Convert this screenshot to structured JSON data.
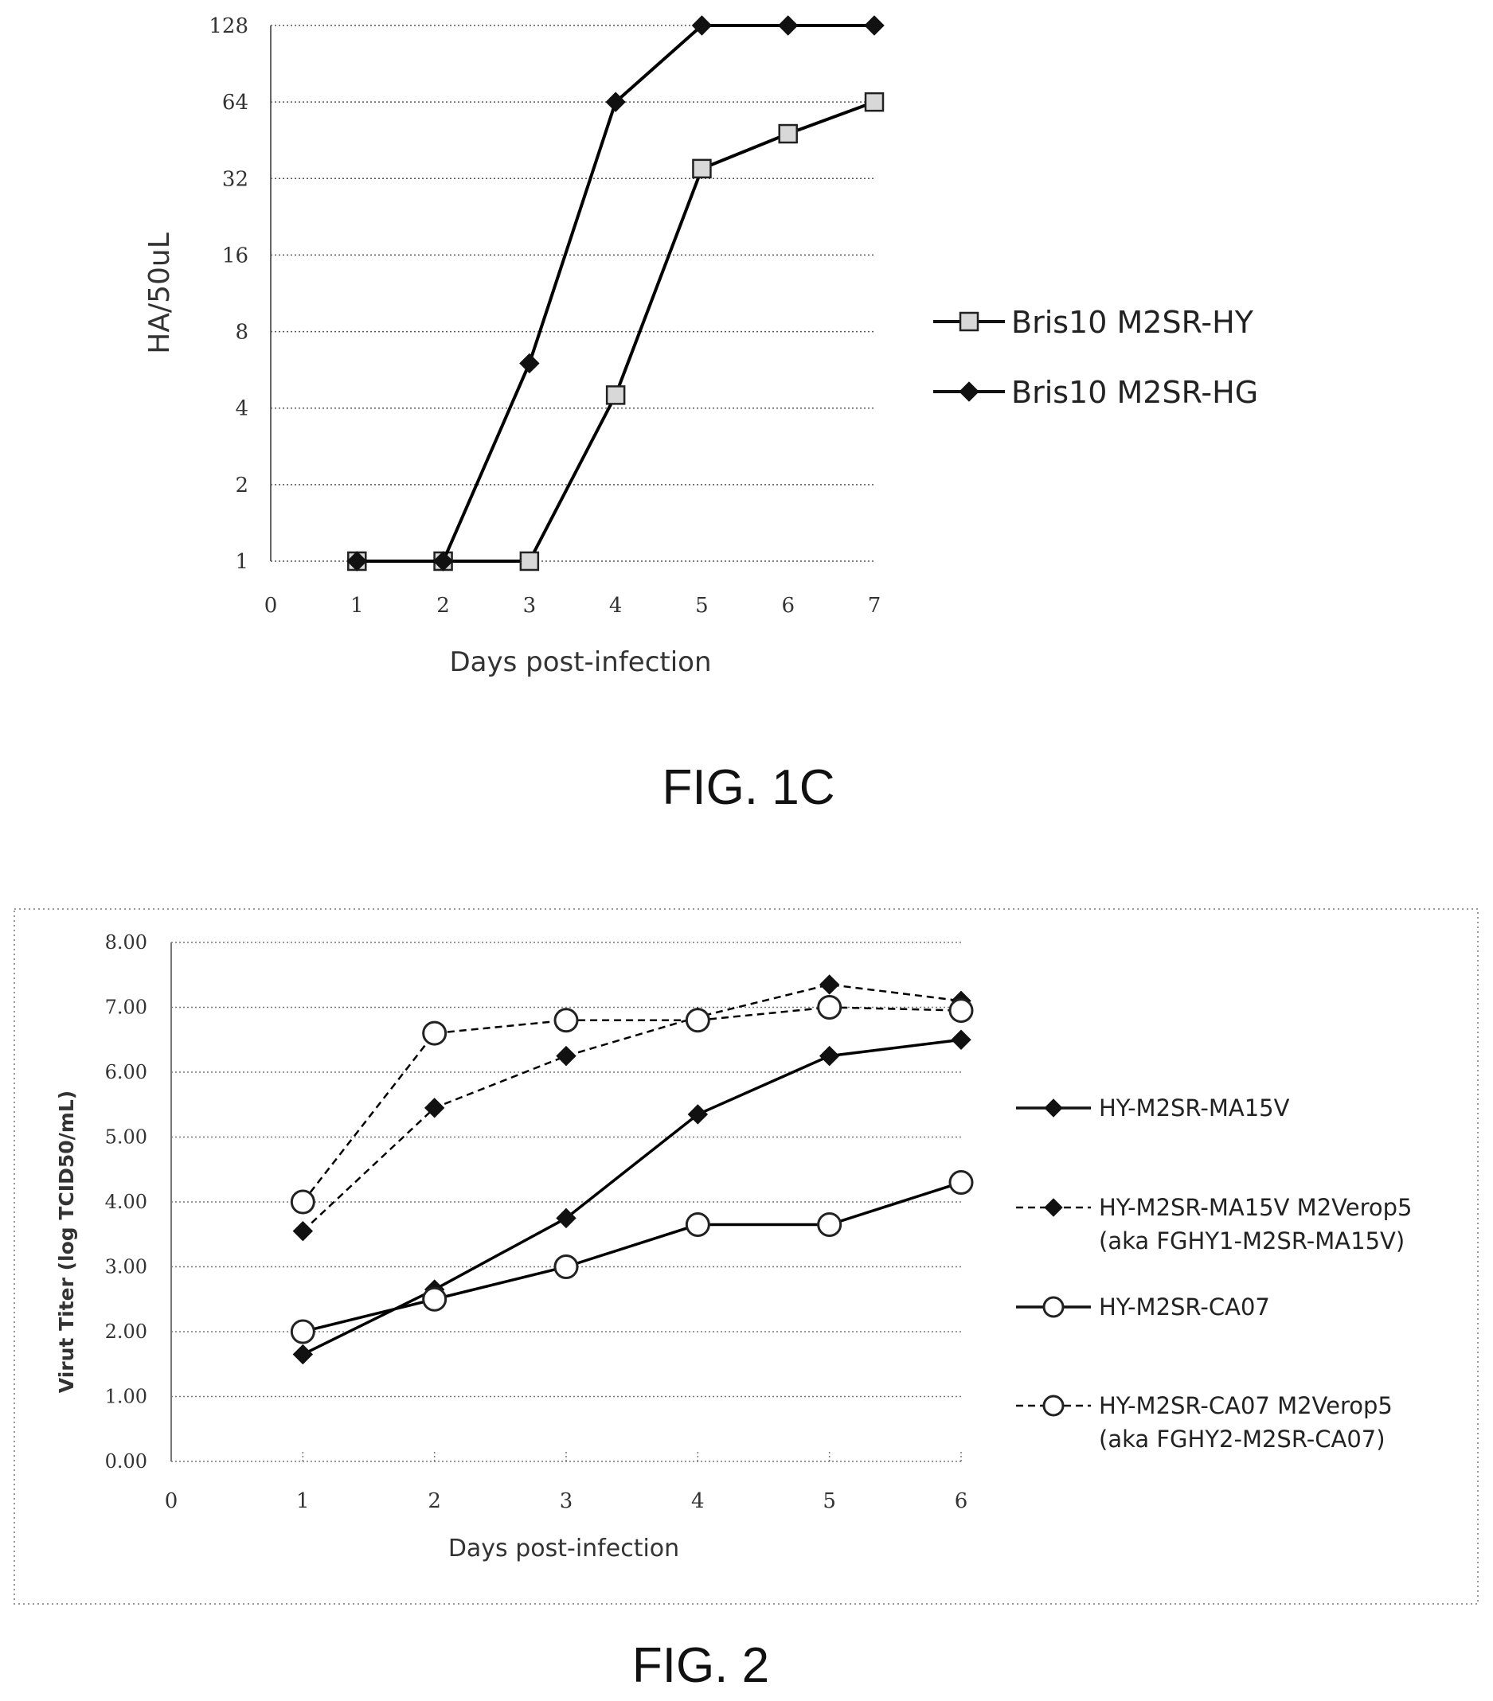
{
  "figures": [
    {
      "caption": "FIG. 1C"
    },
    {
      "caption": "FIG. 2"
    }
  ],
  "chart_data": [
    {
      "type": "line",
      "title": "",
      "xlabel": "Days post-infection",
      "ylabel": "HA/50uL",
      "yscale": "log2",
      "ylim": [
        1,
        128
      ],
      "xlim": [
        0,
        7
      ],
      "x_ticks": [
        0,
        1,
        2,
        3,
        4,
        5,
        6,
        7
      ],
      "y_ticks": [
        1,
        2,
        4,
        8,
        16,
        32,
        64,
        128
      ],
      "grid": "horizontal dotted",
      "legend_position": "right",
      "x": [
        1,
        2,
        3,
        4,
        5,
        6,
        7
      ],
      "series": [
        {
          "name": "Bris10 M2SR-HY",
          "marker": "square-open",
          "line": "solid",
          "color": "#000000",
          "values": [
            1,
            1,
            1,
            4.5,
            35,
            48,
            64
          ]
        },
        {
          "name": "Bris10 M2SR-HG",
          "marker": "diamond-filled",
          "line": "solid",
          "color": "#000000",
          "values": [
            1,
            1,
            6,
            64,
            128,
            128,
            128
          ]
        }
      ]
    },
    {
      "type": "line",
      "title": "",
      "xlabel": "Days post-infection",
      "ylabel": "Virut Titer (log TCID50/mL)",
      "ylim": [
        0,
        8
      ],
      "xlim": [
        0,
        6
      ],
      "x_ticks": [
        0,
        1,
        2,
        3,
        4,
        5,
        6
      ],
      "y_ticks": [
        "0.00",
        "1.00",
        "2.00",
        "3.00",
        "4.00",
        "5.00",
        "6.00",
        "7.00",
        "8.00"
      ],
      "grid": "horizontal dotted",
      "legend_position": "right",
      "x": [
        1,
        2,
        3,
        4,
        5,
        6
      ],
      "series": [
        {
          "name": "HY-M2SR-MA15V",
          "marker": "diamond-filled",
          "line": "solid",
          "color": "#000000",
          "values": [
            1.65,
            2.65,
            3.75,
            5.35,
            6.25,
            6.5
          ]
        },
        {
          "name": "HY-M2SR-MA15V M2Verop5 (aka FGHY1-M2SR-MA15V)",
          "name_lines": [
            "HY-M2SR-MA15V M2Verop5",
            "(aka FGHY1-M2SR-MA15V)"
          ],
          "marker": "diamond-filled",
          "line": "dashed",
          "color": "#000000",
          "values": [
            3.55,
            5.45,
            6.25,
            6.85,
            7.35,
            7.1
          ]
        },
        {
          "name": "HY-M2SR-CA07",
          "marker": "circle-open",
          "line": "solid",
          "color": "#000000",
          "values": [
            2.0,
            2.5,
            3.0,
            3.65,
            3.65,
            4.3
          ]
        },
        {
          "name": "HY-M2SR-CA07 M2Verop5 (aka FGHY2-M2SR-CA07)",
          "name_lines": [
            "HY-M2SR-CA07 M2Verop5",
            "(aka FGHY2-M2SR-CA07)"
          ],
          "marker": "circle-open",
          "line": "dashed",
          "color": "#000000",
          "values": [
            4.0,
            6.6,
            6.8,
            6.8,
            7.0,
            6.95
          ]
        }
      ]
    }
  ]
}
